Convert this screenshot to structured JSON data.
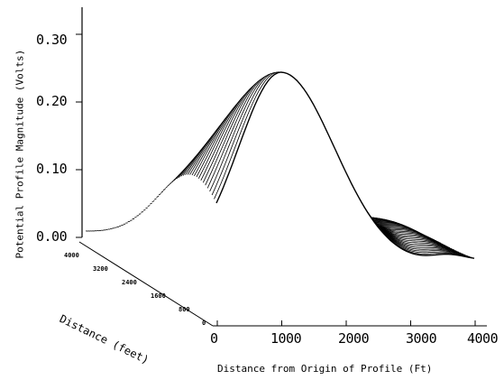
{
  "chart_data": {
    "type": "surface",
    "title": "",
    "xlabel": "Distance from Origin of Profile (Ft)",
    "ylabel": "Distance (feet)",
    "zlabel": "Potential Profile Magnitude (Volts)",
    "x_ticks": [
      "0",
      "1000",
      "2000",
      "3000",
      "4000"
    ],
    "y_ticks": [
      "4000",
      "3200",
      "2400",
      "1600",
      "800",
      "0"
    ],
    "z_ticks": [
      "0.00",
      "0.10",
      "0.20",
      "0.30"
    ],
    "xlim": [
      0,
      4000
    ],
    "ylim": [
      0,
      4000
    ],
    "zlim": [
      0,
      0.34
    ],
    "profile_count": 60,
    "peak": {
      "x": 1000,
      "y": 0,
      "z": 0.27
    },
    "color": "#000000"
  }
}
